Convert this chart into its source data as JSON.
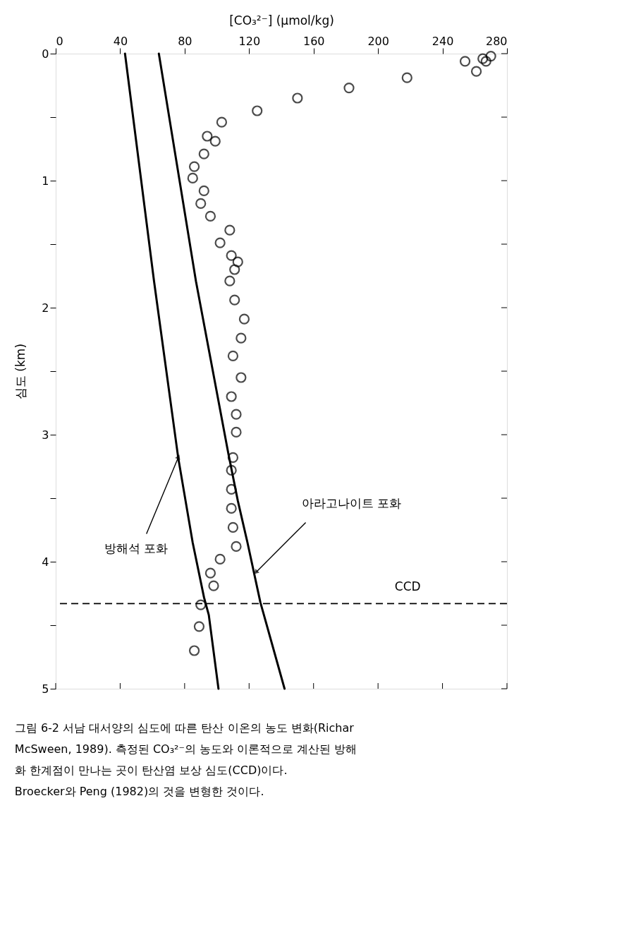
{
  "chart_data": {
    "type": "scatter",
    "xlabel": "[CO₃²⁻] (μmol/kg)",
    "ylabel": "심도 (km)",
    "xlim": [
      0,
      280
    ],
    "xticks": [
      0,
      40,
      80,
      120,
      160,
      200,
      240,
      280
    ],
    "ylim": [
      5,
      0
    ],
    "yticks": [
      0,
      {
        "value": 0.5,
        "label": null
      },
      1,
      {
        "value": 1.5,
        "label": null
      },
      2,
      {
        "value": 2.5,
        "label": null
      },
      3,
      {
        "value": 3.5,
        "label": null
      },
      4,
      {
        "value": 4.5,
        "label": null
      },
      5
    ],
    "grid": false,
    "series": [
      {
        "type": "scatter",
        "color": "#000000",
        "marker": "circle",
        "x": [
          270,
          265,
          267,
          254,
          261,
          218,
          182,
          150,
          125,
          103,
          94,
          99,
          92,
          86,
          85,
          92,
          90,
          96,
          108,
          102,
          109,
          113,
          111,
          108,
          111,
          117,
          115,
          110,
          115,
          109,
          112,
          112,
          110,
          109,
          109,
          109,
          110,
          112,
          102,
          96,
          98,
          90,
          89,
          86
        ],
        "values": [
          0.02,
          0.04,
          0.06,
          0.06,
          0.14,
          0.19,
          0.27,
          0.35,
          0.45,
          0.54,
          0.65,
          0.69,
          0.79,
          0.89,
          0.98,
          1.08,
          1.18,
          1.28,
          1.39,
          1.49,
          1.59,
          1.64,
          1.7,
          1.79,
          1.94,
          2.09,
          2.24,
          2.38,
          2.55,
          2.7,
          2.84,
          2.98,
          3.18,
          3.28,
          3.43,
          3.58,
          3.73,
          3.88,
          3.98,
          4.09,
          4.19,
          4.34,
          4.51,
          4.7
        ]
      },
      {
        "type": "line",
        "color": "#000000",
        "marker": "none",
        "line_style": "solid",
        "x": [
          43,
          61,
          76,
          85,
          92,
          95,
          101
        ],
        "values": [
          0,
          1.79,
          3.18,
          3.85,
          4.28,
          4.42,
          5
        ]
      },
      {
        "type": "line",
        "color": "#000000",
        "marker": "none",
        "line_style": "solid",
        "x": [
          64,
          87,
          107,
          113,
          119,
          127,
          142
        ],
        "values": [
          0,
          1.79,
          3.14,
          3.52,
          3.85,
          4.32,
          5
        ]
      }
    ],
    "ref_lines": [
      {
        "axis": "y",
        "value": 4.33,
        "label": "CCD",
        "color": "#000000",
        "line_style": "dashed"
      }
    ],
    "annotations": [
      {
        "text": "방해석 포화",
        "x": 76,
        "y": 3.18
      },
      {
        "text": "아라고나이트 포화",
        "x": 124.5,
        "y": 4.08
      },
      "그림 6-2  서남  대서양의  심도에  따른  탄산 이온의  농도  변화(Richar",
      "McSween, 1989). 측정된 CO₃²⁻의 농도와 이론적으로 계산된 방해",
      "화 한계점이 만나는 곳이 탄산염 보상 심도(CCD)이다.",
      "Broecker와 Peng (1982)의 것을 변형한 것이다."
    ]
  }
}
